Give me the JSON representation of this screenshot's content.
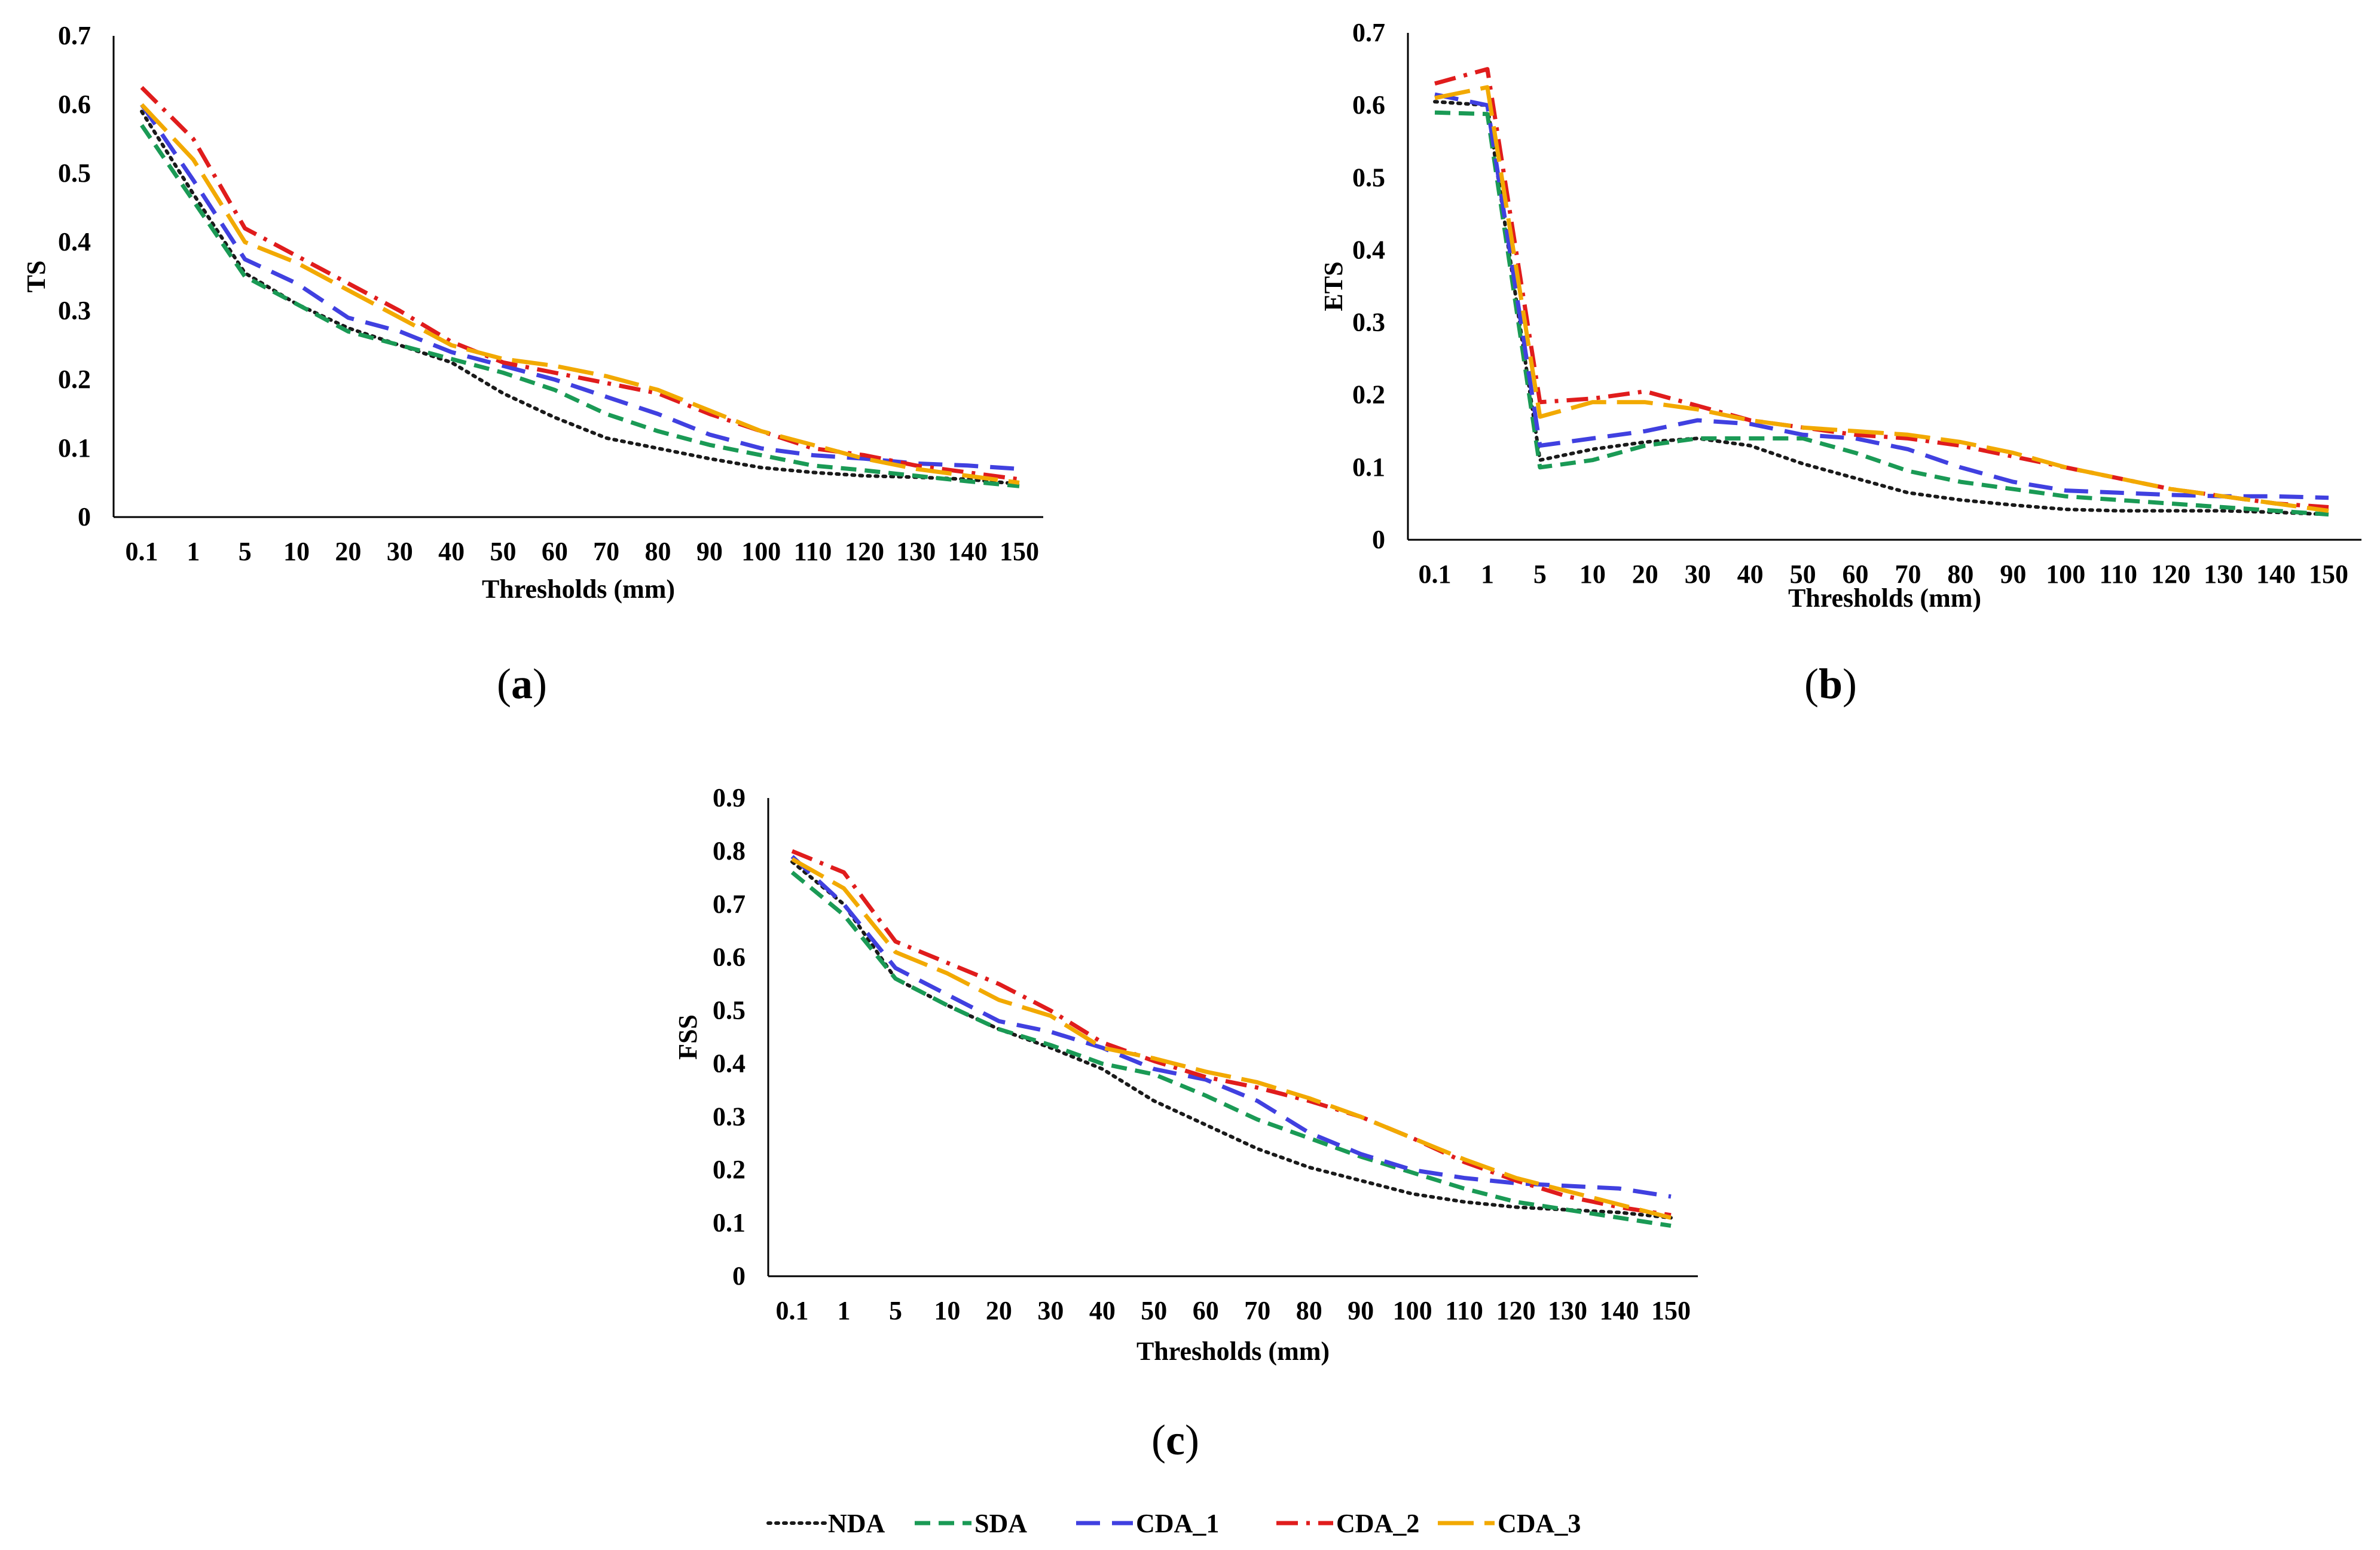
{
  "chart_data": [
    {
      "id": "a",
      "type": "line",
      "panel_label": "a",
      "ylabel": "TS",
      "xlabel": "Thresholds (mm)",
      "ylim": [
        0,
        0.7
      ],
      "yticks": [
        "0",
        "0.1",
        "0.2",
        "0.3",
        "0.4",
        "0.5",
        "0.6",
        "0.7"
      ],
      "categories": [
        "0.1",
        "1",
        "5",
        "10",
        "20",
        "30",
        "40",
        "50",
        "60",
        "70",
        "80",
        "90",
        "100",
        "110",
        "120",
        "130",
        "140",
        "150"
      ],
      "series": [
        {
          "name": "NDA",
          "values": [
            0.59,
            0.47,
            0.355,
            0.31,
            0.275,
            0.25,
            0.225,
            0.18,
            0.145,
            0.115,
            0.1,
            0.085,
            0.072,
            0.065,
            0.06,
            0.058,
            0.055,
            0.048
          ]
        },
        {
          "name": "SDA",
          "values": [
            0.57,
            0.46,
            0.35,
            0.31,
            0.27,
            0.25,
            0.23,
            0.21,
            0.185,
            0.15,
            0.125,
            0.105,
            0.09,
            0.075,
            0.068,
            0.06,
            0.052,
            0.045
          ]
        },
        {
          "name": "CDA_1",
          "values": [
            0.6,
            0.49,
            0.375,
            0.34,
            0.29,
            0.27,
            0.24,
            0.22,
            0.2,
            0.175,
            0.15,
            0.12,
            0.1,
            0.09,
            0.085,
            0.078,
            0.075,
            0.07
          ]
        },
        {
          "name": "CDA_2",
          "values": [
            0.625,
            0.55,
            0.42,
            0.38,
            0.34,
            0.3,
            0.255,
            0.225,
            0.21,
            0.195,
            0.18,
            0.15,
            0.125,
            0.1,
            0.09,
            0.075,
            0.065,
            0.055
          ]
        },
        {
          "name": "CDA_3",
          "values": [
            0.6,
            0.52,
            0.4,
            0.37,
            0.33,
            0.29,
            0.25,
            0.23,
            0.22,
            0.205,
            0.185,
            0.155,
            0.125,
            0.105,
            0.085,
            0.07,
            0.06,
            0.05
          ]
        }
      ]
    },
    {
      "id": "b",
      "type": "line",
      "panel_label": "b",
      "ylabel": "ETS",
      "xlabel": "Thresholds (mm)",
      "ylim": [
        0,
        0.7
      ],
      "yticks": [
        "0",
        "0.1",
        "0.2",
        "0.3",
        "0.4",
        "0.5",
        "0.6",
        "0.7"
      ],
      "categories": [
        "0.1",
        "1",
        "5",
        "10",
        "20",
        "30",
        "40",
        "50",
        "60",
        "70",
        "80",
        "90",
        "100",
        "110",
        "120",
        "130",
        "140",
        "150"
      ],
      "series": [
        {
          "name": "NDA",
          "values": [
            0.605,
            0.6,
            0.11,
            0.125,
            0.135,
            0.14,
            0.13,
            0.105,
            0.085,
            0.065,
            0.055,
            0.048,
            0.042,
            0.04,
            0.04,
            0.04,
            0.038,
            0.035
          ]
        },
        {
          "name": "SDA",
          "values": [
            0.59,
            0.588,
            0.1,
            0.11,
            0.13,
            0.14,
            0.14,
            0.14,
            0.12,
            0.095,
            0.08,
            0.07,
            0.06,
            0.055,
            0.05,
            0.045,
            0.04,
            0.035
          ]
        },
        {
          "name": "CDA_1",
          "values": [
            0.615,
            0.6,
            0.13,
            0.14,
            0.15,
            0.165,
            0.16,
            0.145,
            0.14,
            0.125,
            0.1,
            0.08,
            0.068,
            0.065,
            0.062,
            0.06,
            0.06,
            0.058
          ]
        },
        {
          "name": "CDA_2",
          "values": [
            0.63,
            0.65,
            0.19,
            0.195,
            0.205,
            0.185,
            0.165,
            0.155,
            0.145,
            0.14,
            0.13,
            0.115,
            0.1,
            0.085,
            0.07,
            0.06,
            0.05,
            0.045
          ]
        },
        {
          "name": "CDA_3",
          "values": [
            0.61,
            0.625,
            0.17,
            0.19,
            0.19,
            0.18,
            0.165,
            0.155,
            0.15,
            0.145,
            0.135,
            0.12,
            0.1,
            0.085,
            0.07,
            0.06,
            0.05,
            0.04
          ]
        }
      ]
    },
    {
      "id": "c",
      "type": "line",
      "panel_label": "c",
      "ylabel": "FSS",
      "xlabel": "Thresholds (mm)",
      "ylim": [
        0,
        0.9
      ],
      "yticks": [
        "0",
        "0.1",
        "0.2",
        "0.3",
        "0.4",
        "0.5",
        "0.6",
        "0.7",
        "0.8",
        "0.9"
      ],
      "categories": [
        "0.1",
        "1",
        "5",
        "10",
        "20",
        "30",
        "40",
        "50",
        "60",
        "70",
        "80",
        "90",
        "100",
        "110",
        "120",
        "130",
        "140",
        "150"
      ],
      "series": [
        {
          "name": "NDA",
          "values": [
            0.78,
            0.7,
            0.56,
            0.51,
            0.465,
            0.43,
            0.39,
            0.33,
            0.285,
            0.24,
            0.205,
            0.18,
            0.155,
            0.14,
            0.13,
            0.125,
            0.12,
            0.11
          ]
        },
        {
          "name": "SDA",
          "values": [
            0.76,
            0.68,
            0.56,
            0.51,
            0.465,
            0.435,
            0.4,
            0.38,
            0.34,
            0.295,
            0.26,
            0.225,
            0.195,
            0.165,
            0.14,
            0.125,
            0.11,
            0.095
          ]
        },
        {
          "name": "CDA_1",
          "values": [
            0.79,
            0.7,
            0.58,
            0.53,
            0.48,
            0.46,
            0.43,
            0.39,
            0.37,
            0.33,
            0.27,
            0.23,
            0.2,
            0.185,
            0.175,
            0.17,
            0.165,
            0.15
          ]
        },
        {
          "name": "CDA_2",
          "values": [
            0.8,
            0.76,
            0.63,
            0.59,
            0.55,
            0.5,
            0.44,
            0.405,
            0.375,
            0.355,
            0.33,
            0.3,
            0.26,
            0.215,
            0.18,
            0.15,
            0.13,
            0.115
          ]
        },
        {
          "name": "CDA_3",
          "values": [
            0.785,
            0.73,
            0.61,
            0.57,
            0.52,
            0.49,
            0.43,
            0.41,
            0.385,
            0.365,
            0.335,
            0.3,
            0.26,
            0.22,
            0.185,
            0.16,
            0.135,
            0.11
          ]
        }
      ]
    }
  ],
  "legend": [
    {
      "name": "NDA",
      "color": "#1a1a1a"
    },
    {
      "name": "SDA",
      "color": "#1a9a55"
    },
    {
      "name": "CDA_1",
      "color": "#4040e0"
    },
    {
      "name": "CDA_2",
      "color": "#e01c1c"
    },
    {
      "name": "CDA_3",
      "color": "#f2a900"
    }
  ],
  "panel_labels": {
    "a": {
      "open": "(",
      "letter": "a",
      "close": ")"
    },
    "b": {
      "open": "(",
      "letter": "b",
      "close": ")"
    },
    "c": {
      "open": "(",
      "letter": "c",
      "close": ")"
    }
  }
}
